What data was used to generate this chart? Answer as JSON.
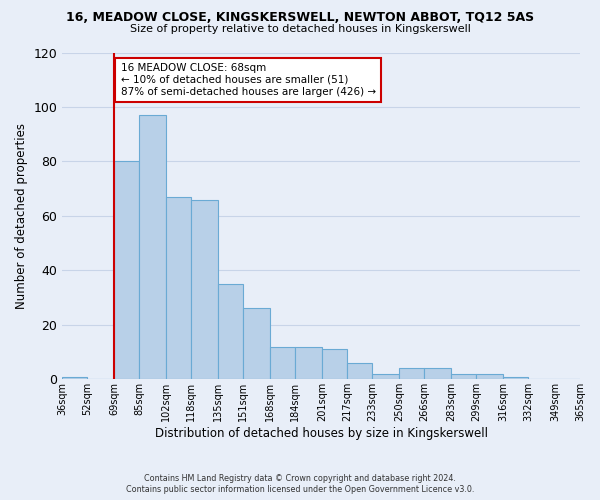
{
  "title": "16, MEADOW CLOSE, KINGSKERSWELL, NEWTON ABBOT, TQ12 5AS",
  "subtitle": "Size of property relative to detached houses in Kingskerswell",
  "xlabel": "Distribution of detached houses by size in Kingskerswell",
  "ylabel": "Number of detached properties",
  "bar_edges": [
    36,
    52,
    69,
    85,
    102,
    118,
    135,
    151,
    168,
    184,
    201,
    217,
    233,
    250,
    266,
    283,
    299,
    316,
    332,
    349,
    365
  ],
  "bar_heights": [
    1,
    0,
    80,
    97,
    67,
    66,
    35,
    26,
    12,
    12,
    11,
    6,
    2,
    4,
    4,
    2,
    2,
    1,
    0,
    0
  ],
  "bar_color": "#b8d0e8",
  "bar_edge_color": "#6aaad4",
  "vline_x": 69,
  "vline_color": "#cc0000",
  "ylim": [
    0,
    120
  ],
  "yticks": [
    0,
    20,
    40,
    60,
    80,
    100,
    120
  ],
  "annotation_title": "16 MEADOW CLOSE: 68sqm",
  "annotation_line1": "← 10% of detached houses are smaller (51)",
  "annotation_line2": "87% of semi-detached houses are larger (426) →",
  "annotation_box_color": "#ffffff",
  "annotation_box_edge": "#cc0000",
  "footer_line1": "Contains HM Land Registry data © Crown copyright and database right 2024.",
  "footer_line2": "Contains public sector information licensed under the Open Government Licence v3.0.",
  "tick_labels": [
    "36sqm",
    "52sqm",
    "69sqm",
    "85sqm",
    "102sqm",
    "118sqm",
    "135sqm",
    "151sqm",
    "168sqm",
    "184sqm",
    "201sqm",
    "217sqm",
    "233sqm",
    "250sqm",
    "266sqm",
    "283sqm",
    "299sqm",
    "316sqm",
    "332sqm",
    "349sqm",
    "365sqm"
  ],
  "grid_color": "#c8d4e8",
  "background_color": "#e8eef8"
}
